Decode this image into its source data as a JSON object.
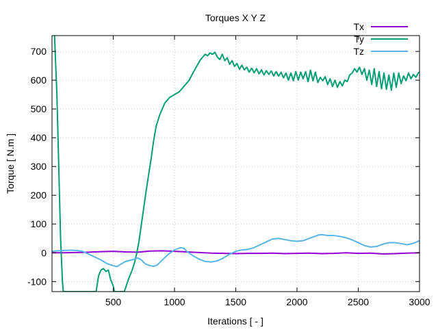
{
  "chart_data": {
    "type": "line",
    "title": "Torques X Y Z",
    "xlabel": "Iterations [ - ]",
    "ylabel": "Torque [ N.m ]",
    "xlim": [
      0,
      3000
    ],
    "ylim": [
      -135,
      755
    ],
    "xticks": [
      500,
      1000,
      1500,
      2000,
      2500,
      3000
    ],
    "yticks": [
      -100,
      0,
      100,
      200,
      300,
      400,
      500,
      600,
      700
    ],
    "grid": true,
    "legend_position": "top-right",
    "series": [
      {
        "name": "Tx",
        "color": "#9400d3",
        "points": [
          [
            0,
            0
          ],
          [
            100,
            0
          ],
          [
            200,
            1
          ],
          [
            300,
            2
          ],
          [
            400,
            4
          ],
          [
            500,
            5
          ],
          [
            600,
            3
          ],
          [
            700,
            2
          ],
          [
            800,
            6
          ],
          [
            900,
            7
          ],
          [
            1000,
            5
          ],
          [
            1100,
            3
          ],
          [
            1200,
            1
          ],
          [
            1300,
            -1
          ],
          [
            1400,
            -2
          ],
          [
            1500,
            -3
          ],
          [
            1600,
            -2
          ],
          [
            1700,
            -2
          ],
          [
            1800,
            -1
          ],
          [
            1900,
            -3
          ],
          [
            2000,
            -2
          ],
          [
            2100,
            -1
          ],
          [
            2200,
            -3
          ],
          [
            2300,
            -2
          ],
          [
            2400,
            0
          ],
          [
            2500,
            -2
          ],
          [
            2600,
            -1
          ],
          [
            2700,
            -4
          ],
          [
            2800,
            -3
          ],
          [
            2900,
            -1
          ],
          [
            3000,
            0
          ]
        ]
      },
      {
        "name": "Ty",
        "color": "#009e73",
        "points": [
          [
            20,
            760
          ],
          [
            40,
            550
          ],
          [
            55,
            300
          ],
          [
            70,
            50
          ],
          [
            85,
            -100
          ],
          [
            92,
            -135
          ],
          [
            360,
            -135
          ],
          [
            380,
            -80
          ],
          [
            400,
            -60
          ],
          [
            420,
            -55
          ],
          [
            440,
            -65
          ],
          [
            460,
            -60
          ],
          [
            480,
            -95
          ],
          [
            500,
            -115
          ],
          [
            510,
            -135
          ],
          [
            590,
            -135
          ],
          [
            610,
            -110
          ],
          [
            630,
            -85
          ],
          [
            650,
            -65
          ],
          [
            670,
            -40
          ],
          [
            690,
            -5
          ],
          [
            710,
            40
          ],
          [
            730,
            100
          ],
          [
            750,
            160
          ],
          [
            770,
            220
          ],
          [
            790,
            275
          ],
          [
            810,
            330
          ],
          [
            830,
            390
          ],
          [
            850,
            440
          ],
          [
            880,
            480
          ],
          [
            920,
            520
          ],
          [
            960,
            540
          ],
          [
            1000,
            550
          ],
          [
            1040,
            560
          ],
          [
            1080,
            580
          ],
          [
            1120,
            600
          ],
          [
            1150,
            625
          ],
          [
            1170,
            640
          ],
          [
            1190,
            655
          ],
          [
            1210,
            670
          ],
          [
            1230,
            680
          ],
          [
            1250,
            690
          ],
          [
            1270,
            685
          ],
          [
            1290,
            695
          ],
          [
            1310,
            690
          ],
          [
            1330,
            697
          ],
          [
            1350,
            680
          ],
          [
            1370,
            672
          ],
          [
            1390,
            690
          ],
          [
            1410,
            668
          ],
          [
            1430,
            678
          ],
          [
            1450,
            655
          ],
          [
            1470,
            668
          ],
          [
            1490,
            648
          ],
          [
            1510,
            658
          ],
          [
            1530,
            638
          ],
          [
            1550,
            652
          ],
          [
            1570,
            636
          ],
          [
            1590,
            645
          ],
          [
            1610,
            628
          ],
          [
            1630,
            642
          ],
          [
            1650,
            626
          ],
          [
            1670,
            640
          ],
          [
            1690,
            622
          ],
          [
            1710,
            636
          ],
          [
            1730,
            618
          ],
          [
            1750,
            633
          ],
          [
            1770,
            620
          ],
          [
            1790,
            632
          ],
          [
            1810,
            615
          ],
          [
            1830,
            630
          ],
          [
            1850,
            614
          ],
          [
            1870,
            628
          ],
          [
            1890,
            608
          ],
          [
            1910,
            625
          ],
          [
            1930,
            600
          ],
          [
            1950,
            625
          ],
          [
            1970,
            598
          ],
          [
            1990,
            630
          ],
          [
            2010,
            600
          ],
          [
            2030,
            628
          ],
          [
            2050,
            605
          ],
          [
            2070,
            630
          ],
          [
            2090,
            595
          ],
          [
            2110,
            635
          ],
          [
            2130,
            598
          ],
          [
            2150,
            628
          ],
          [
            2170,
            592
          ],
          [
            2190,
            610
          ],
          [
            2210,
            598
          ],
          [
            2230,
            612
          ],
          [
            2250,
            585
          ],
          [
            2270,
            605
          ],
          [
            2290,
            578
          ],
          [
            2310,
            600
          ],
          [
            2330,
            575
          ],
          [
            2350,
            595
          ],
          [
            2370,
            580
          ],
          [
            2390,
            600
          ],
          [
            2410,
            595
          ],
          [
            2430,
            618
          ],
          [
            2450,
            625
          ],
          [
            2470,
            640
          ],
          [
            2490,
            628
          ],
          [
            2510,
            645
          ],
          [
            2530,
            620
          ],
          [
            2550,
            640
          ],
          [
            2570,
            600
          ],
          [
            2590,
            635
          ],
          [
            2610,
            585
          ],
          [
            2630,
            640
          ],
          [
            2650,
            578
          ],
          [
            2670,
            630
          ],
          [
            2690,
            570
          ],
          [
            2710,
            625
          ],
          [
            2730,
            568
          ],
          [
            2750,
            618
          ],
          [
            2770,
            565
          ],
          [
            2790,
            625
          ],
          [
            2810,
            575
          ],
          [
            2830,
            625
          ],
          [
            2850,
            588
          ],
          [
            2870,
            615
          ],
          [
            2890,
            598
          ],
          [
            2910,
            625
          ],
          [
            2930,
            605
          ],
          [
            2950,
            620
          ],
          [
            2970,
            610
          ],
          [
            2990,
            625
          ],
          [
            3000,
            628
          ]
        ]
      },
      {
        "name": "Tz",
        "color": "#56b4e9",
        "points": [
          [
            0,
            5
          ],
          [
            50,
            7
          ],
          [
            100,
            8
          ],
          [
            150,
            9
          ],
          [
            200,
            8
          ],
          [
            250,
            5
          ],
          [
            300,
            -5
          ],
          [
            350,
            -15
          ],
          [
            400,
            -25
          ],
          [
            450,
            -38
          ],
          [
            500,
            -45
          ],
          [
            530,
            -48
          ],
          [
            560,
            -40
          ],
          [
            600,
            -30
          ],
          [
            650,
            -25
          ],
          [
            700,
            -18
          ],
          [
            730,
            -25
          ],
          [
            760,
            -38
          ],
          [
            800,
            -45
          ],
          [
            830,
            -47
          ],
          [
            860,
            -42
          ],
          [
            900,
            -25
          ],
          [
            950,
            -5
          ],
          [
            1000,
            10
          ],
          [
            1050,
            18
          ],
          [
            1080,
            15
          ],
          [
            1100,
            5
          ],
          [
            1150,
            -10
          ],
          [
            1200,
            -22
          ],
          [
            1250,
            -30
          ],
          [
            1300,
            -32
          ],
          [
            1350,
            -28
          ],
          [
            1400,
            -18
          ],
          [
            1450,
            -5
          ],
          [
            1500,
            5
          ],
          [
            1550,
            10
          ],
          [
            1600,
            12
          ],
          [
            1650,
            18
          ],
          [
            1700,
            28
          ],
          [
            1750,
            38
          ],
          [
            1800,
            48
          ],
          [
            1850,
            50
          ],
          [
            1900,
            46
          ],
          [
            1950,
            42
          ],
          [
            2000,
            40
          ],
          [
            2050,
            42
          ],
          [
            2100,
            50
          ],
          [
            2150,
            58
          ],
          [
            2180,
            62
          ],
          [
            2200,
            63
          ],
          [
            2250,
            60
          ],
          [
            2300,
            60
          ],
          [
            2350,
            57
          ],
          [
            2400,
            52
          ],
          [
            2450,
            45
          ],
          [
            2500,
            35
          ],
          [
            2550,
            25
          ],
          [
            2600,
            20
          ],
          [
            2650,
            22
          ],
          [
            2700,
            30
          ],
          [
            2750,
            35
          ],
          [
            2800,
            35
          ],
          [
            2850,
            32
          ],
          [
            2900,
            28
          ],
          [
            2950,
            33
          ],
          [
            3000,
            42
          ]
        ]
      }
    ]
  }
}
